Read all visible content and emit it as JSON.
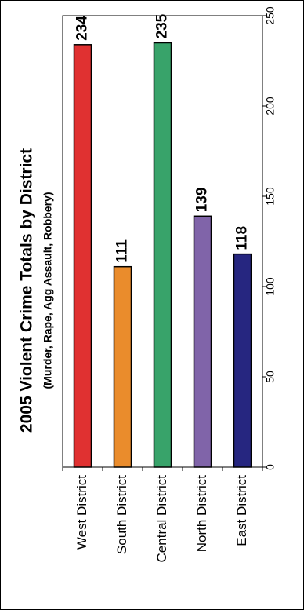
{
  "chart_data": {
    "type": "bar",
    "title": "2005 Violent Crime Totals by District",
    "subtitle": "(Murder, Rape, Agg Assault, Robbery)",
    "categories": [
      "West District",
      "South District",
      "Central District",
      "North District",
      "East District"
    ],
    "values": [
      234,
      111,
      235,
      139,
      118
    ],
    "colors": [
      "#e03131",
      "#ea8c2c",
      "#38a36a",
      "#8064a9",
      "#262680"
    ],
    "ylim": [
      0,
      250
    ],
    "yticks": [
      0,
      50,
      100,
      150,
      200,
      250
    ],
    "rotated": true,
    "value_labels_shown": true
  }
}
